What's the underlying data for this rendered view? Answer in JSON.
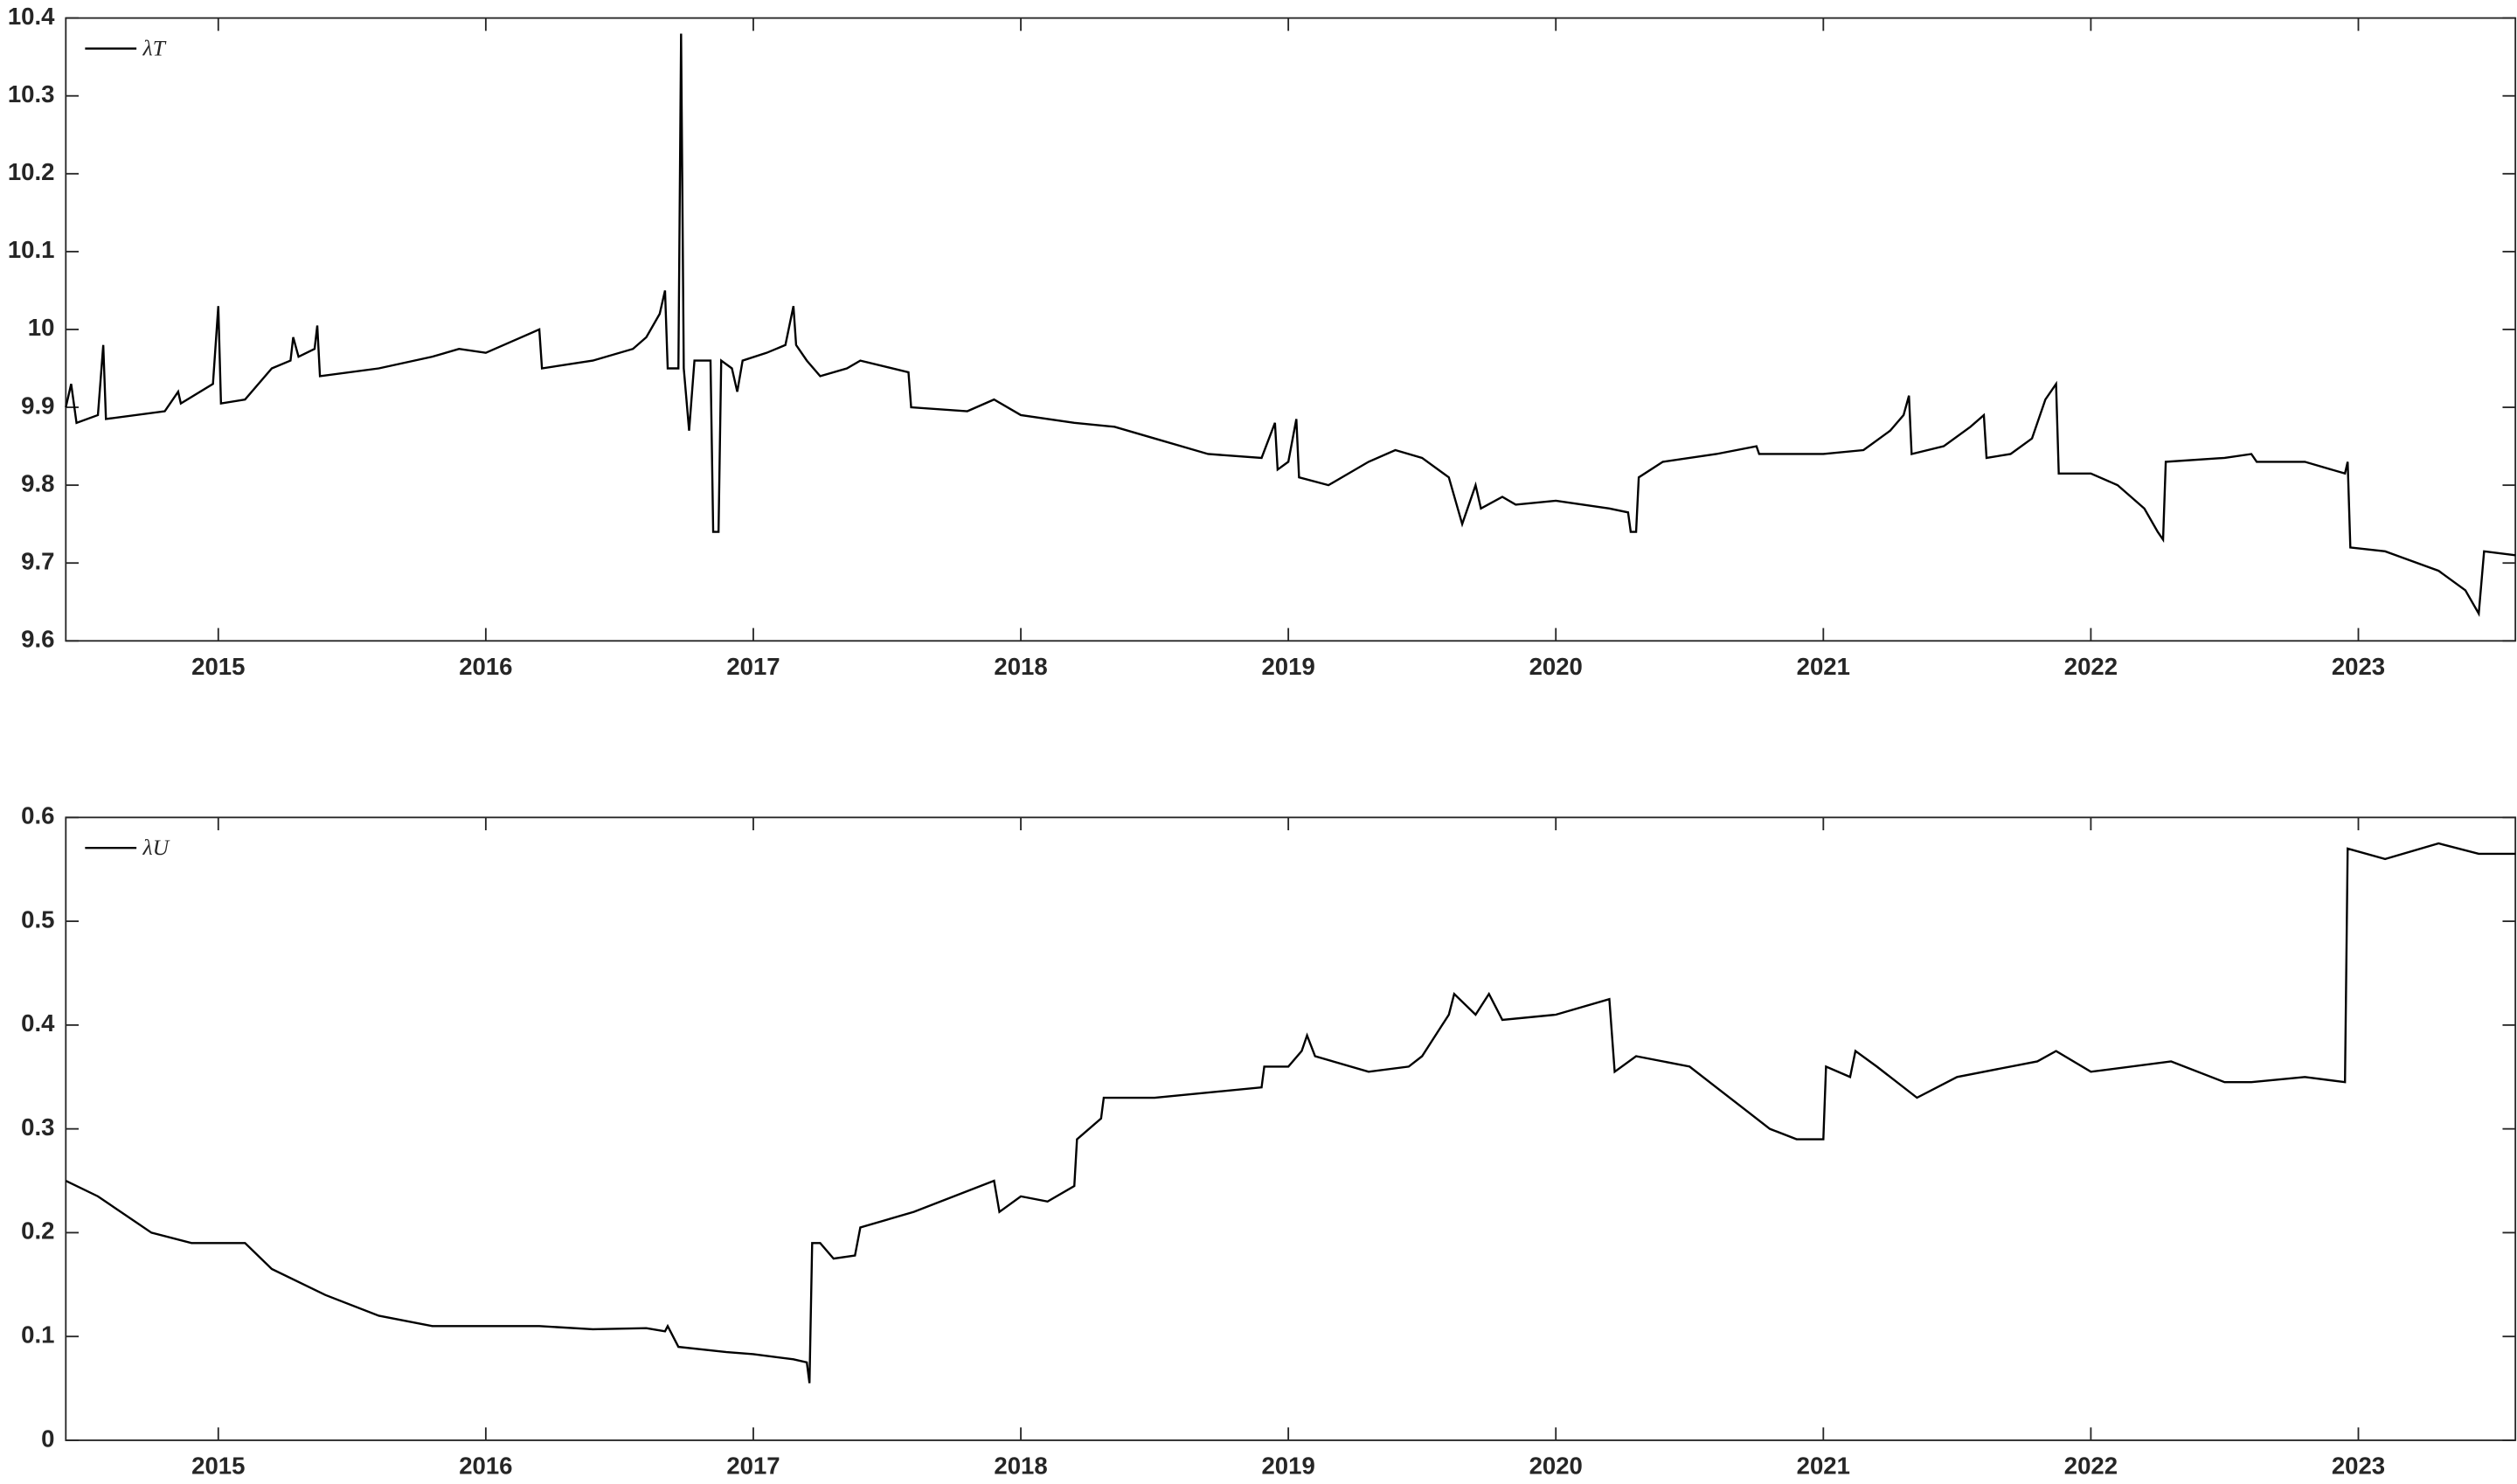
{
  "chart_data": [
    {
      "type": "line",
      "legend": "upper-left",
      "xlim": [
        2014.43,
        2023.587
      ],
      "xticks": [
        2015,
        2016,
        2017,
        2018,
        2019,
        2020,
        2021,
        2022,
        2023
      ],
      "ylim": [
        9.6,
        10.4
      ],
      "yticks": [
        9.6,
        9.7,
        9.8,
        9.9,
        10,
        10.1,
        10.2,
        10.3,
        10.4
      ],
      "x": [
        2014.43,
        2014.45,
        2014.47,
        2014.55,
        2014.57,
        2014.58,
        2014.8,
        2014.85,
        2014.86,
        2014.98,
        2015.0,
        2015.01,
        2015.1,
        2015.2,
        2015.27,
        2015.28,
        2015.3,
        2015.36,
        2015.37,
        2015.38,
        2015.6,
        2015.8,
        2015.9,
        2016.0,
        2016.1,
        2016.2,
        2016.21,
        2016.4,
        2016.55,
        2016.6,
        2016.65,
        2016.67,
        2016.68,
        2016.72,
        2016.73,
        2016.74,
        2016.76,
        2016.78,
        2016.84,
        2016.85,
        2016.87,
        2016.88,
        2016.92,
        2016.94,
        2016.96,
        2017.05,
        2017.12,
        2017.15,
        2017.16,
        2017.2,
        2017.25,
        2017.35,
        2017.4,
        2017.58,
        2017.59,
        2017.8,
        2017.9,
        2018.0,
        2018.2,
        2018.35,
        2018.5,
        2018.7,
        2018.9,
        2018.95,
        2018.96,
        2019.0,
        2019.03,
        2019.04,
        2019.15,
        2019.3,
        2019.4,
        2019.5,
        2019.6,
        2019.65,
        2019.7,
        2019.72,
        2019.8,
        2019.85,
        2020.0,
        2020.2,
        2020.27,
        2020.28,
        2020.3,
        2020.31,
        2020.4,
        2020.6,
        2020.75,
        2020.76,
        2021.0,
        2021.15,
        2021.25,
        2021.3,
        2021.32,
        2021.33,
        2021.45,
        2021.55,
        2021.6,
        2021.61,
        2021.7,
        2021.78,
        2021.83,
        2021.87,
        2021.88,
        2022.0,
        2022.1,
        2022.2,
        2022.25,
        2022.27,
        2022.28,
        2022.5,
        2022.6,
        2022.62,
        2022.8,
        2022.95,
        2022.96,
        2022.97,
        2023.1,
        2023.3,
        2023.4,
        2023.45,
        2023.47,
        2023.587
      ],
      "series": [
        {
          "name": "λT",
          "color": "#000000",
          "values": [
            9.9,
            9.93,
            9.88,
            9.89,
            9.98,
            9.885,
            9.895,
            9.92,
            9.905,
            9.93,
            10.03,
            9.905,
            9.91,
            9.95,
            9.96,
            9.99,
            9.965,
            9.975,
            10.005,
            9.94,
            9.95,
            9.965,
            9.975,
            9.97,
            9.985,
            10.0,
            9.95,
            9.96,
            9.975,
            9.99,
            10.02,
            10.05,
            9.95,
            9.95,
            10.38,
            9.95,
            9.87,
            9.96,
            9.96,
            9.74,
            9.74,
            9.96,
            9.95,
            9.92,
            9.96,
            9.97,
            9.98,
            10.03,
            9.98,
            9.96,
            9.94,
            9.95,
            9.96,
            9.945,
            9.9,
            9.895,
            9.91,
            9.89,
            9.88,
            9.875,
            9.86,
            9.84,
            9.835,
            9.88,
            9.82,
            9.83,
            9.885,
            9.81,
            9.8,
            9.83,
            9.845,
            9.835,
            9.81,
            9.75,
            9.8,
            9.77,
            9.785,
            9.775,
            9.78,
            9.77,
            9.765,
            9.74,
            9.74,
            9.81,
            9.83,
            9.84,
            9.85,
            9.84,
            9.84,
            9.845,
            9.87,
            9.89,
            9.915,
            9.84,
            9.85,
            9.875,
            9.89,
            9.835,
            9.84,
            9.86,
            9.91,
            9.93,
            9.815,
            9.815,
            9.8,
            9.77,
            9.74,
            9.73,
            9.83,
            9.835,
            9.84,
            9.83,
            9.83,
            9.815,
            9.83,
            9.72,
            9.715,
            9.69,
            9.665,
            9.635,
            9.715,
            9.71
          ]
        }
      ]
    },
    {
      "type": "line",
      "legend": "upper-left",
      "xlim": [
        2014.43,
        2023.587
      ],
      "xticks": [
        2015,
        2016,
        2017,
        2018,
        2019,
        2020,
        2021,
        2022,
        2023
      ],
      "ylim": [
        0,
        0.6
      ],
      "yticks": [
        0,
        0.1,
        0.2,
        0.3,
        0.4,
        0.5,
        0.6
      ],
      "x": [
        2014.43,
        2014.55,
        2014.75,
        2014.9,
        2015.1,
        2015.2,
        2015.4,
        2015.6,
        2015.8,
        2016.0,
        2016.2,
        2016.4,
        2016.6,
        2016.67,
        2016.68,
        2016.72,
        2016.9,
        2017.0,
        2017.15,
        2017.2,
        2017.21,
        2017.22,
        2017.25,
        2017.3,
        2017.38,
        2017.4,
        2017.6,
        2017.8,
        2017.9,
        2017.92,
        2018.0,
        2018.1,
        2018.2,
        2018.21,
        2018.3,
        2018.31,
        2018.5,
        2018.9,
        2018.91,
        2019.0,
        2019.05,
        2019.07,
        2019.1,
        2019.3,
        2019.45,
        2019.5,
        2019.6,
        2019.62,
        2019.7,
        2019.75,
        2019.8,
        2020.0,
        2020.2,
        2020.22,
        2020.3,
        2020.5,
        2020.6,
        2020.8,
        2020.9,
        2021.0,
        2021.01,
        2021.1,
        2021.12,
        2021.2,
        2021.35,
        2021.5,
        2021.8,
        2021.87,
        2022.0,
        2022.3,
        2022.5,
        2022.6,
        2022.8,
        2022.95,
        2022.96,
        2023.1,
        2023.3,
        2023.45,
        2023.587
      ],
      "series": [
        {
          "name": "λU",
          "color": "#000000",
          "values": [
            0.25,
            0.235,
            0.2,
            0.19,
            0.19,
            0.165,
            0.14,
            0.12,
            0.11,
            0.11,
            0.11,
            0.107,
            0.108,
            0.105,
            0.11,
            0.09,
            0.085,
            0.083,
            0.078,
            0.075,
            0.055,
            0.19,
            0.19,
            0.175,
            0.178,
            0.205,
            0.22,
            0.24,
            0.25,
            0.22,
            0.235,
            0.23,
            0.245,
            0.29,
            0.31,
            0.33,
            0.33,
            0.34,
            0.36,
            0.36,
            0.375,
            0.39,
            0.37,
            0.355,
            0.36,
            0.37,
            0.41,
            0.43,
            0.41,
            0.43,
            0.405,
            0.41,
            0.425,
            0.355,
            0.37,
            0.36,
            0.34,
            0.3,
            0.29,
            0.29,
            0.36,
            0.35,
            0.375,
            0.36,
            0.33,
            0.35,
            0.365,
            0.375,
            0.355,
            0.365,
            0.345,
            0.345,
            0.35,
            0.345,
            0.57,
            0.56,
            0.575,
            0.565,
            0.565
          ]
        }
      ]
    }
  ]
}
